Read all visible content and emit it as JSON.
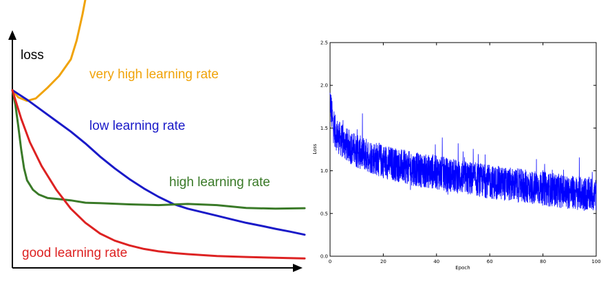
{
  "chart_data": [
    {
      "type": "line",
      "title": "",
      "ylabel": "loss",
      "xlabel": "",
      "ticks": "none",
      "grid": false,
      "legend": "none",
      "series": [
        {
          "name": "very high learning rate",
          "color": "#f0a30a",
          "x": [
            0,
            0.02,
            0.05,
            0.08,
            0.12,
            0.16,
            0.2,
            0.22,
            0.24,
            0.26
          ],
          "y": [
            0.75,
            0.72,
            0.705,
            0.715,
            0.76,
            0.81,
            0.88,
            0.96,
            1.07,
            1.2
          ]
        },
        {
          "name": "low learning rate",
          "color": "#1a1ac8",
          "x": [
            0,
            0.05,
            0.1,
            0.15,
            0.2,
            0.25,
            0.3,
            0.35,
            0.4,
            0.45,
            0.5,
            0.55,
            0.6,
            0.65,
            0.7,
            0.75,
            0.8,
            0.85,
            0.9,
            0.95,
            1.0
          ],
          "y": [
            0.75,
            0.71,
            0.665,
            0.62,
            0.575,
            0.525,
            0.47,
            0.42,
            0.375,
            0.335,
            0.3,
            0.27,
            0.25,
            0.235,
            0.22,
            0.205,
            0.19,
            0.178,
            0.165,
            0.153,
            0.14
          ]
        },
        {
          "name": "high learning rate",
          "color": "#3a7a28",
          "x": [
            0,
            0.01,
            0.02,
            0.03,
            0.04,
            0.05,
            0.07,
            0.09,
            0.12,
            0.16,
            0.2,
            0.25,
            0.3,
            0.4,
            0.5,
            0.6,
            0.7,
            0.8,
            0.9,
            1.0
          ],
          "y": [
            0.75,
            0.69,
            0.6,
            0.5,
            0.42,
            0.37,
            0.33,
            0.31,
            0.295,
            0.29,
            0.285,
            0.275,
            0.273,
            0.268,
            0.265,
            0.27,
            0.265,
            0.253,
            0.25,
            0.252
          ]
        },
        {
          "name": "good learning rate",
          "color": "#dd2222",
          "x": [
            0,
            0.03,
            0.06,
            0.1,
            0.15,
            0.2,
            0.25,
            0.3,
            0.35,
            0.4,
            0.45,
            0.5,
            0.55,
            0.6,
            0.7,
            0.8,
            0.9,
            1.0
          ],
          "y": [
            0.75,
            0.63,
            0.53,
            0.43,
            0.33,
            0.25,
            0.19,
            0.145,
            0.115,
            0.095,
            0.08,
            0.07,
            0.063,
            0.058,
            0.05,
            0.046,
            0.043,
            0.04
          ]
        }
      ]
    },
    {
      "type": "line",
      "title": "",
      "xlabel": "Epoch",
      "ylabel": "Loss",
      "xlim": [
        0,
        100
      ],
      "ylim": [
        0.0,
        2.5
      ],
      "xticks": [
        "0",
        "20",
        "40",
        "60",
        "80",
        "100"
      ],
      "yticks": [
        "0.0",
        "0.5",
        "1.0",
        "1.5",
        "2.0",
        "2.5"
      ],
      "grid": false,
      "legend": "none",
      "series": [
        {
          "color": "#0000ff",
          "x": [
            0,
            1,
            2,
            3,
            5,
            8,
            10,
            15,
            20,
            25,
            30,
            35,
            40,
            45,
            50,
            55,
            60,
            65,
            70,
            75,
            80,
            85,
            90,
            95,
            100
          ],
          "y": [
            1.85,
            1.55,
            1.45,
            1.4,
            1.33,
            1.27,
            1.23,
            1.17,
            1.11,
            1.07,
            1.03,
            1.0,
            0.98,
            0.95,
            0.92,
            0.9,
            0.87,
            0.85,
            0.83,
            0.81,
            0.79,
            0.77,
            0.75,
            0.73,
            0.72
          ],
          "noise_amplitude": 0.2
        }
      ]
    }
  ]
}
